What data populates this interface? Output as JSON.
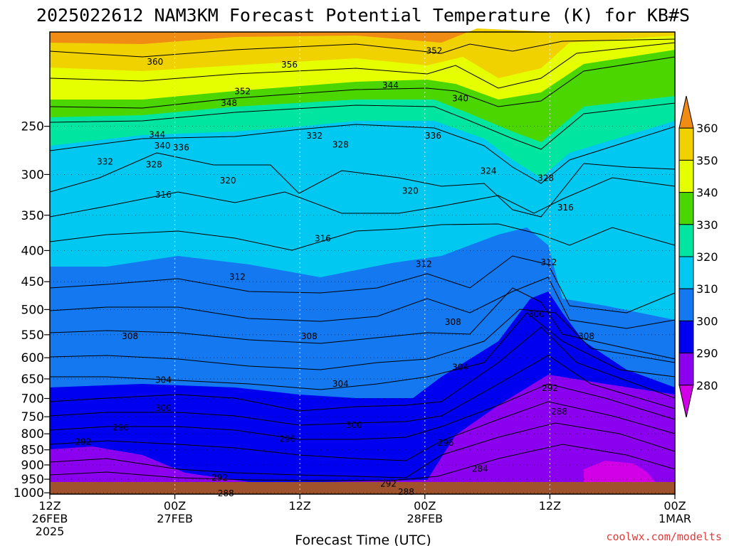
{
  "chart_data": {
    "type": "contour",
    "title": "2025022612 NAM3KM Forecast Potential Temperature (K) for KB#S",
    "xlabel": "Forecast Time (UTC)",
    "ylabel": "",
    "credit": "coolwx.com/modelts",
    "y_scale": "log (pressure)",
    "ylim": [
      1005,
      175
    ],
    "y_ticks": [
      250,
      300,
      350,
      400,
      450,
      500,
      550,
      600,
      650,
      700,
      750,
      800,
      850,
      900,
      950,
      1000
    ],
    "x_ticks": [
      {
        "hour": 0,
        "lines": [
          "12Z",
          "26FEB",
          "2025"
        ]
      },
      {
        "hour": 12,
        "lines": [
          "00Z",
          "27FEB"
        ]
      },
      {
        "hour": 24,
        "lines": [
          "12Z"
        ]
      },
      {
        "hour": 36,
        "lines": [
          "00Z",
          "28FEB"
        ]
      },
      {
        "hour": 48,
        "lines": [
          "12Z"
        ]
      },
      {
        "hour": 60,
        "lines": [
          "00Z",
          "1MAR"
        ]
      }
    ],
    "xlim": [
      0,
      60
    ],
    "colorbar": {
      "levels": [
        360,
        350,
        340,
        330,
        320,
        310,
        300,
        290,
        280
      ],
      "colors": [
        "#f08c14",
        "#f0d200",
        "#e6ff00",
        "#4cd600",
        "#00e6a0",
        "#00c8f0",
        "#1478f0",
        "#0000f0",
        "#8c00f0",
        "#d200e6"
      ],
      "units": "K"
    },
    "contour_interval": 2,
    "contour_labels": [
      {
        "value": 360,
        "hour": 10.1,
        "p": 196
      },
      {
        "value": 356,
        "hour": 23.0,
        "p": 198
      },
      {
        "value": 352,
        "hour": 18.5,
        "p": 219
      },
      {
        "value": 352,
        "hour": 36.9,
        "p": 188
      },
      {
        "value": 348,
        "hour": 17.2,
        "p": 229
      },
      {
        "value": 344,
        "hour": 32.7,
        "p": 214
      },
      {
        "value": 344,
        "hour": 10.3,
        "p": 258
      },
      {
        "value": 340,
        "hour": 10.8,
        "p": 269
      },
      {
        "value": 340,
        "hour": 39.4,
        "p": 225
      },
      {
        "value": 336,
        "hour": 12.6,
        "p": 271
      },
      {
        "value": 336,
        "hour": 36.8,
        "p": 259
      },
      {
        "value": 332,
        "hour": 5.3,
        "p": 286
      },
      {
        "value": 332,
        "hour": 25.4,
        "p": 259
      },
      {
        "value": 328,
        "hour": 10.0,
        "p": 289
      },
      {
        "value": 328,
        "hour": 27.9,
        "p": 268
      },
      {
        "value": 328,
        "hour": 47.6,
        "p": 304
      },
      {
        "value": 324,
        "hour": 42.1,
        "p": 296
      },
      {
        "value": 320,
        "hour": 17.1,
        "p": 307
      },
      {
        "value": 320,
        "hour": 34.6,
        "p": 319
      },
      {
        "value": 316,
        "hour": 10.9,
        "p": 324
      },
      {
        "value": 316,
        "hour": 49.5,
        "p": 340
      },
      {
        "value": 316,
        "hour": 26.2,
        "p": 382
      },
      {
        "value": 312,
        "hour": 18.0,
        "p": 442
      },
      {
        "value": 312,
        "hour": 35.9,
        "p": 421
      },
      {
        "value": 312,
        "hour": 47.9,
        "p": 418
      },
      {
        "value": 308,
        "hour": 7.7,
        "p": 553
      },
      {
        "value": 308,
        "hour": 24.9,
        "p": 553
      },
      {
        "value": 308,
        "hour": 38.7,
        "p": 524
      },
      {
        "value": 308,
        "hour": 51.5,
        "p": 553
      },
      {
        "value": 304,
        "hour": 10.9,
        "p": 653
      },
      {
        "value": 304,
        "hour": 27.9,
        "p": 662
      },
      {
        "value": 304,
        "hour": 39.4,
        "p": 622
      },
      {
        "value": 300,
        "hour": 10.9,
        "p": 726
      },
      {
        "value": 300,
        "hour": 29.2,
        "p": 774
      },
      {
        "value": 300,
        "hour": 46.7,
        "p": 509
      },
      {
        "value": 296,
        "hour": 6.8,
        "p": 782
      },
      {
        "value": 296,
        "hour": 22.8,
        "p": 816
      },
      {
        "value": 296,
        "hour": 38.0,
        "p": 828
      },
      {
        "value": 292,
        "hour": 3.2,
        "p": 825
      },
      {
        "value": 292,
        "hour": 16.3,
        "p": 945
      },
      {
        "value": 292,
        "hour": 32.5,
        "p": 966
      },
      {
        "value": 292,
        "hour": 48.0,
        "p": 673
      },
      {
        "value": 288,
        "hour": 16.9,
        "p": 1002
      },
      {
        "value": 288,
        "hour": 34.2,
        "p": 997
      },
      {
        "value": 288,
        "hour": 48.9,
        "p": 736
      },
      {
        "value": 284,
        "hour": 41.3,
        "p": 913
      }
    ]
  }
}
